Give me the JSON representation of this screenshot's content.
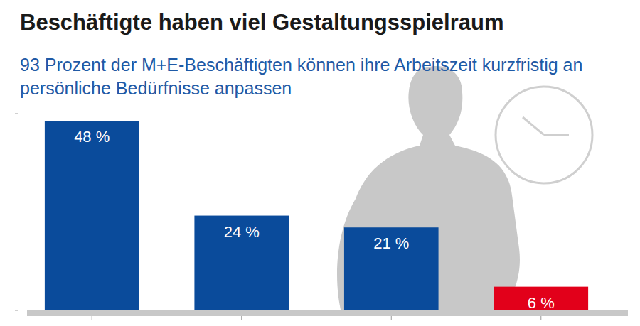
{
  "chart_data": {
    "type": "bar",
    "title": "Beschäftigte haben viel Gestaltungsspielraum",
    "subtitle": "93 Prozent der M+E-Beschäftigten können ihre Arbeitszeit kurzfristig an persönliche Bedürfnisse anpassen",
    "categories": [
      null,
      null,
      null,
      null
    ],
    "values": [
      48,
      24,
      21,
      6
    ],
    "value_labels": [
      "48 %",
      "24 %",
      "21 %",
      "6 %"
    ],
    "colors": [
      "#0a4b9b",
      "#0a4b9b",
      "#0a4b9b",
      "#e2001a"
    ],
    "ylim": [
      0,
      50
    ],
    "yticks": [
      0,
      50
    ],
    "tick_labels": false,
    "data_labels": true
  }
}
